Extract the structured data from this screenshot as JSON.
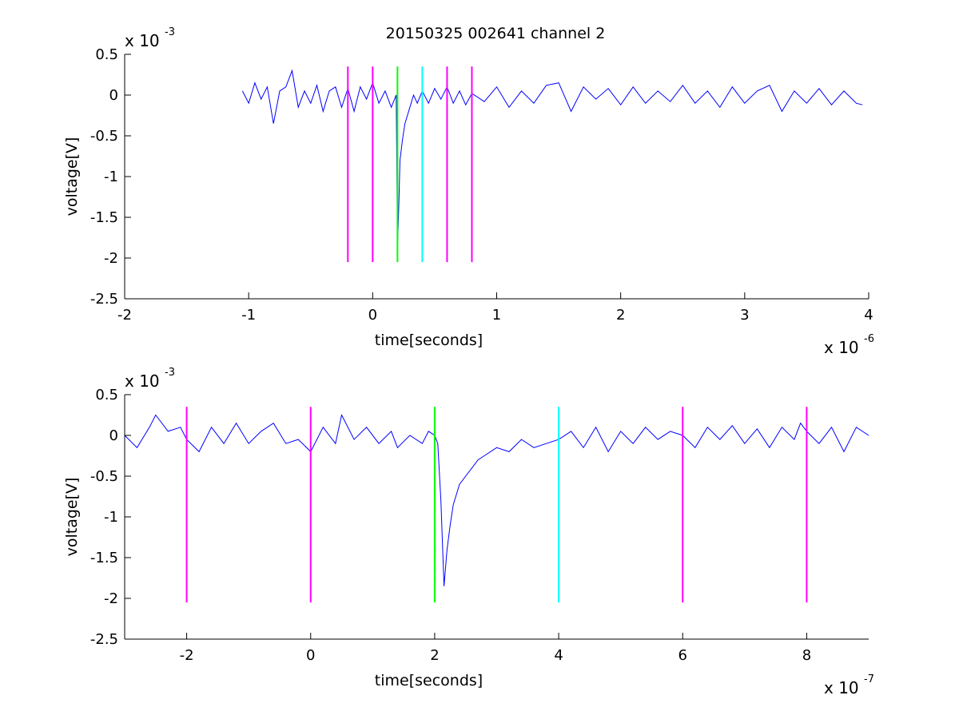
{
  "title": "20150325 002641 channel 2",
  "colors": {
    "trace": "#0000ff",
    "marker": "#ff00ff",
    "peak": "#00ff00",
    "cursor": "#00ffff",
    "axes": "#000000",
    "background": "#ffffff"
  },
  "chart_data": [
    {
      "type": "line",
      "panel": "top",
      "xlabel": "time[seconds]",
      "ylabel": "voltage[V]",
      "x_multiplier": {
        "base": "x 10",
        "exp": "-6"
      },
      "y_multiplier": {
        "base": "x 10",
        "exp": "-3"
      },
      "xlim": [
        -2,
        4
      ],
      "ylim": [
        -2.5,
        0.5
      ],
      "x_ticks": [
        -2,
        -1,
        0,
        1,
        2,
        3,
        4
      ],
      "x_tick_labels": [
        "-2",
        "-1",
        "0",
        "1",
        "2",
        "3",
        "4"
      ],
      "y_ticks": [
        0.5,
        0,
        -0.5,
        -1,
        -1.5,
        -2,
        -2.5
      ],
      "y_tick_labels": [
        "0.5",
        "0",
        "-0.5",
        "-1",
        "-1.5",
        "-2",
        "-2.5"
      ],
      "series": [
        {
          "x": [
            -1.05,
            -1.0,
            -0.95,
            -0.9,
            -0.85,
            -0.8,
            -0.75,
            -0.7,
            -0.65,
            -0.6,
            -0.55,
            -0.5,
            -0.45,
            -0.4,
            -0.35,
            -0.3,
            -0.25,
            -0.2,
            -0.15,
            -0.1,
            -0.05,
            0.0,
            0.05,
            0.1,
            0.15,
            0.19,
            0.2,
            0.21,
            0.22,
            0.24,
            0.26,
            0.28,
            0.3,
            0.33,
            0.36,
            0.4,
            0.45,
            0.5,
            0.55,
            0.6,
            0.65,
            0.7,
            0.75,
            0.8,
            0.9,
            1.0,
            1.1,
            1.2,
            1.3,
            1.4,
            1.5,
            1.6,
            1.7,
            1.8,
            1.9,
            2.0,
            2.1,
            2.2,
            2.3,
            2.4,
            2.5,
            2.6,
            2.7,
            2.8,
            2.9,
            3.0,
            3.1,
            3.2,
            3.3,
            3.4,
            3.5,
            3.6,
            3.7,
            3.8,
            3.9,
            3.95
          ],
          "y": [
            0.05,
            -0.1,
            0.15,
            -0.05,
            0.1,
            -0.35,
            0.05,
            0.1,
            0.3,
            -0.15,
            0.05,
            -0.1,
            0.12,
            -0.2,
            0.05,
            0.1,
            -0.15,
            0.08,
            -0.2,
            0.1,
            -0.05,
            0.15,
            -0.1,
            0.05,
            -0.15,
            0.0,
            -1.85,
            -1.4,
            -0.8,
            -0.55,
            -0.35,
            -0.25,
            -0.15,
            0.0,
            -0.1,
            0.05,
            -0.1,
            0.08,
            -0.05,
            0.1,
            -0.1,
            0.05,
            -0.12,
            0.02,
            -0.08,
            0.1,
            -0.15,
            0.05,
            -0.1,
            0.12,
            0.15,
            -0.2,
            0.1,
            -0.05,
            0.08,
            -0.12,
            0.1,
            -0.1,
            0.05,
            -0.08,
            0.12,
            -0.1,
            0.05,
            -0.15,
            0.1,
            -0.1,
            0.05,
            0.12,
            -0.2,
            0.05,
            -0.1,
            0.08,
            -0.12,
            0.05,
            -0.1,
            -0.12
          ]
        }
      ],
      "markers": [
        {
          "x": -0.2,
          "color": "#ff00ff",
          "ymin": -2.05,
          "ymax": 0.35
        },
        {
          "x": 0.0,
          "color": "#ff00ff",
          "ymin": -2.05,
          "ymax": 0.35
        },
        {
          "x": 0.2,
          "color": "#00ff00",
          "ymin": -2.05,
          "ymax": 0.35
        },
        {
          "x": 0.4,
          "color": "#00ffff",
          "ymin": -2.05,
          "ymax": 0.35
        },
        {
          "x": 0.6,
          "color": "#ff00ff",
          "ymin": -2.05,
          "ymax": 0.35
        },
        {
          "x": 0.8,
          "color": "#ff00ff",
          "ymin": -2.05,
          "ymax": 0.35
        }
      ]
    },
    {
      "type": "line",
      "panel": "bottom",
      "xlabel": "time[seconds]",
      "ylabel": "voltage[V]",
      "x_multiplier": {
        "base": "x 10",
        "exp": "-7"
      },
      "y_multiplier": {
        "base": "x 10",
        "exp": "-3"
      },
      "xlim": [
        -3,
        9
      ],
      "ylim": [
        -2.5,
        0.5
      ],
      "x_ticks": [
        -2,
        0,
        2,
        4,
        6,
        8
      ],
      "x_tick_labels": [
        "-2",
        "0",
        "2",
        "4",
        "6",
        "8"
      ],
      "y_ticks": [
        0.5,
        0,
        -0.5,
        -1,
        -1.5,
        -2,
        -2.5
      ],
      "y_tick_labels": [
        "0.5",
        "0",
        "-0.5",
        "-1",
        "-1.5",
        "-2",
        "-2.5"
      ],
      "series": [
        {
          "x": [
            -3.0,
            -2.8,
            -2.6,
            -2.5,
            -2.3,
            -2.1,
            -2.0,
            -1.8,
            -1.6,
            -1.4,
            -1.2,
            -1.0,
            -0.8,
            -0.6,
            -0.4,
            -0.2,
            0.0,
            0.2,
            0.4,
            0.5,
            0.7,
            0.9,
            1.1,
            1.3,
            1.4,
            1.6,
            1.8,
            1.9,
            2.0,
            2.05,
            2.1,
            2.15,
            2.2,
            2.25,
            2.3,
            2.4,
            2.5,
            2.6,
            2.7,
            2.8,
            3.0,
            3.2,
            3.4,
            3.6,
            3.8,
            4.0,
            4.2,
            4.4,
            4.6,
            4.8,
            5.0,
            5.2,
            5.4,
            5.6,
            5.8,
            6.0,
            6.2,
            6.4,
            6.6,
            6.8,
            7.0,
            7.2,
            7.4,
            7.6,
            7.8,
            7.9,
            8.0,
            8.2,
            8.4,
            8.6,
            8.8,
            9.0
          ],
          "y": [
            0.0,
            -0.15,
            0.1,
            0.25,
            0.05,
            0.1,
            -0.05,
            -0.2,
            0.1,
            -0.1,
            0.15,
            -0.1,
            0.05,
            0.15,
            -0.1,
            -0.05,
            -0.2,
            0.1,
            -0.1,
            0.25,
            -0.05,
            0.1,
            -0.1,
            0.05,
            -0.15,
            0.0,
            -0.1,
            0.05,
            0.0,
            -0.1,
            -0.8,
            -1.85,
            -1.4,
            -1.1,
            -0.85,
            -0.6,
            -0.5,
            -0.4,
            -0.3,
            -0.25,
            -0.15,
            -0.2,
            -0.05,
            -0.15,
            -0.1,
            -0.05,
            0.05,
            -0.15,
            0.1,
            -0.2,
            0.05,
            -0.1,
            0.1,
            -0.05,
            0.05,
            0.0,
            -0.15,
            0.1,
            -0.05,
            0.12,
            -0.1,
            0.08,
            -0.15,
            0.1,
            -0.05,
            0.15,
            0.05,
            -0.1,
            0.1,
            -0.2,
            0.1,
            0.0
          ]
        }
      ],
      "markers": [
        {
          "x": -2,
          "color": "#ff00ff",
          "ymin": -2.05,
          "ymax": 0.35
        },
        {
          "x": 0,
          "color": "#ff00ff",
          "ymin": -2.05,
          "ymax": 0.35
        },
        {
          "x": 2,
          "color": "#00ff00",
          "ymin": -2.05,
          "ymax": 0.35
        },
        {
          "x": 4,
          "color": "#00ffff",
          "ymin": -2.05,
          "ymax": 0.35
        },
        {
          "x": 6,
          "color": "#ff00ff",
          "ymin": -2.05,
          "ymax": 0.35
        },
        {
          "x": 8,
          "color": "#ff00ff",
          "ymin": -2.05,
          "ymax": 0.35
        }
      ]
    }
  ]
}
